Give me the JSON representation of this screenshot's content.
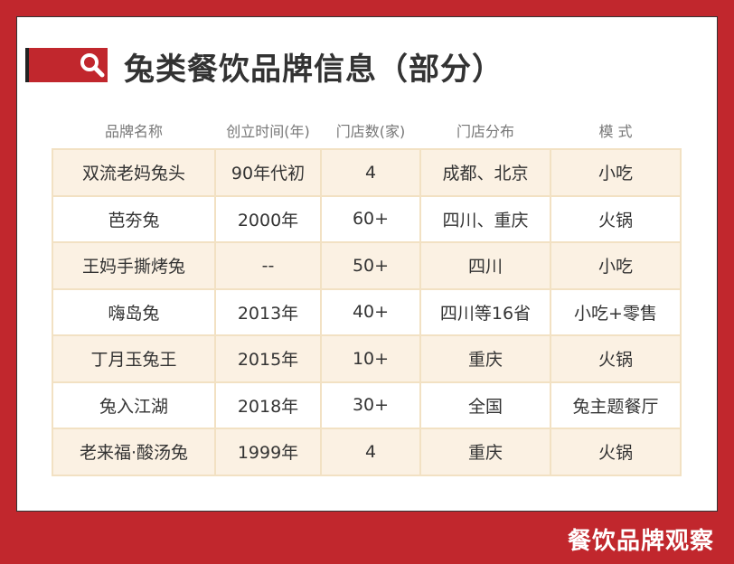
{
  "title": "兔类餐饮品牌信息（部分）",
  "colors": {
    "brand_red": "#c1272d",
    "row_fill": "#fbf1e3",
    "border": "#f2e1c3"
  },
  "header_icon": "search-icon",
  "table": {
    "headers": [
      "品牌名称",
      "创立时间(年)",
      "门店数(家)",
      "门店分布",
      "模 式"
    ],
    "rows": [
      [
        "双流老妈兔头",
        "90年代初",
        "4",
        "成都、北京",
        "小吃"
      ],
      [
        "芭夯兔",
        "2000年",
        "60+",
        "四川、重庆",
        "火锅"
      ],
      [
        "王妈手撕烤兔",
        "--",
        "50+",
        "四川",
        "小吃"
      ],
      [
        "嗨岛兔",
        "2013年",
        "40+",
        "四川等16省",
        "小吃+零售"
      ],
      [
        "丁月玉兔王",
        "2015年",
        "10+",
        "重庆",
        "火锅"
      ],
      [
        "兔入江湖",
        "2018年",
        "30+",
        "全国",
        "兔主题餐厅"
      ],
      [
        "老来福·酸汤兔",
        "1999年",
        "4",
        "重庆",
        "火锅"
      ]
    ]
  },
  "footer": "餐饮品牌观察"
}
